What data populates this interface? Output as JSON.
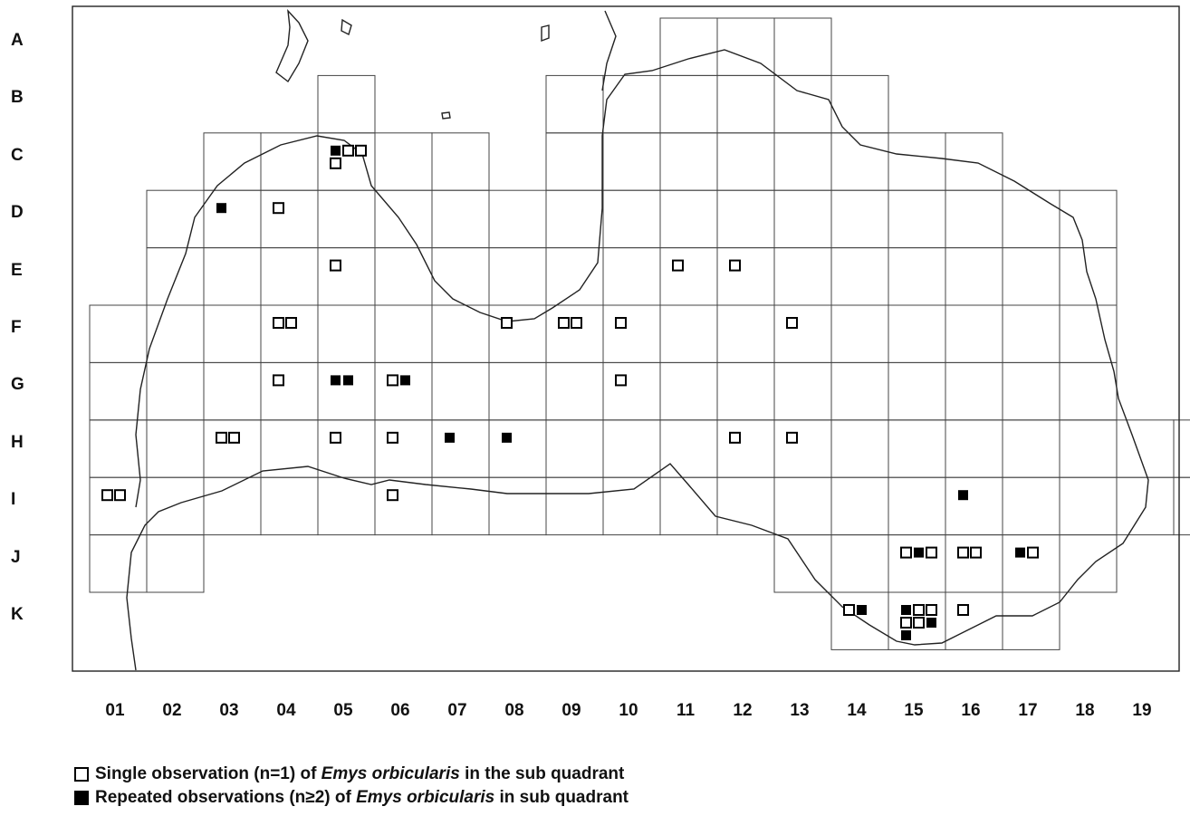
{
  "rows": [
    "A",
    "B",
    "C",
    "D",
    "E",
    "F",
    "G",
    "H",
    "I",
    "J",
    "K"
  ],
  "cols": [
    "01",
    "02",
    "03",
    "04",
    "05",
    "06",
    "07",
    "08",
    "09",
    "10",
    "11",
    "12",
    "13",
    "14",
    "15",
    "16",
    "17",
    "18",
    "19"
  ],
  "legend": {
    "single": {
      "prefix": "Single observation (n=1) of ",
      "species": "Emys orbicularis",
      "suffix": " in the sub quadrant"
    },
    "repeated": {
      "prefix": "Repeated observations (n≥2) of ",
      "species": "Emys orbicularis",
      "suffix": " in sub quadrant"
    }
  },
  "observations": [
    {
      "kind": "repeated",
      "col": "05",
      "row": "C"
    },
    {
      "kind": "single",
      "col": "05",
      "row": "C"
    },
    {
      "kind": "single",
      "col": "05",
      "row": "C"
    },
    {
      "kind": "single",
      "col": "05",
      "row": "C"
    },
    {
      "kind": "repeated",
      "col": "03",
      "row": "D"
    },
    {
      "kind": "single",
      "col": "04",
      "row": "D"
    },
    {
      "kind": "single",
      "col": "05",
      "row": "E"
    },
    {
      "kind": "single",
      "col": "12",
      "row": "E"
    },
    {
      "kind": "single",
      "col": "11",
      "row": "E"
    },
    {
      "kind": "single",
      "col": "04",
      "row": "F"
    },
    {
      "kind": "single",
      "col": "04",
      "row": "F"
    },
    {
      "kind": "single",
      "col": "08",
      "row": "F"
    },
    {
      "kind": "single",
      "col": "09",
      "row": "F"
    },
    {
      "kind": "single",
      "col": "09",
      "row": "F"
    },
    {
      "kind": "single",
      "col": "13",
      "row": "F"
    },
    {
      "kind": "single",
      "col": "10",
      "row": "F"
    },
    {
      "kind": "single",
      "col": "04",
      "row": "G"
    },
    {
      "kind": "repeated",
      "col": "05",
      "row": "G"
    },
    {
      "kind": "repeated",
      "col": "05",
      "row": "G"
    },
    {
      "kind": "single",
      "col": "10",
      "row": "G"
    },
    {
      "kind": "single",
      "col": "06",
      "row": "G"
    },
    {
      "kind": "repeated",
      "col": "06",
      "row": "G"
    },
    {
      "kind": "single",
      "col": "06",
      "row": "H"
    },
    {
      "kind": "single",
      "col": "03",
      "row": "H"
    },
    {
      "kind": "single",
      "col": "03",
      "row": "H"
    },
    {
      "kind": "repeated",
      "col": "07",
      "row": "H"
    },
    {
      "kind": "repeated",
      "col": "08",
      "row": "H"
    },
    {
      "kind": "single",
      "col": "12",
      "row": "H"
    },
    {
      "kind": "single",
      "col": "13",
      "row": "H"
    },
    {
      "kind": "single",
      "col": "05",
      "row": "H"
    },
    {
      "kind": "single",
      "col": "01",
      "row": "I"
    },
    {
      "kind": "single",
      "col": "01",
      "row": "I"
    },
    {
      "kind": "single",
      "col": "06",
      "row": "I"
    },
    {
      "kind": "repeated",
      "col": "16",
      "row": "I"
    },
    {
      "kind": "single",
      "col": "15",
      "row": "J"
    },
    {
      "kind": "repeated",
      "col": "15",
      "row": "J"
    },
    {
      "kind": "single",
      "col": "15",
      "row": "J"
    },
    {
      "kind": "repeated",
      "col": "17",
      "row": "J"
    },
    {
      "kind": "single",
      "col": "17",
      "row": "J"
    },
    {
      "kind": "single",
      "col": "16",
      "row": "J"
    },
    {
      "kind": "single",
      "col": "16",
      "row": "J"
    },
    {
      "kind": "single",
      "col": "16",
      "row": "K"
    },
    {
      "kind": "single",
      "col": "14",
      "row": "K"
    },
    {
      "kind": "repeated",
      "col": "14",
      "row": "K"
    },
    {
      "kind": "repeated",
      "col": "15",
      "row": "K"
    },
    {
      "kind": "single",
      "col": "15",
      "row": "K"
    },
    {
      "kind": "single",
      "col": "15",
      "row": "K"
    },
    {
      "kind": "single",
      "col": "15",
      "row": "K"
    },
    {
      "kind": "single",
      "col": "15",
      "row": "K"
    },
    {
      "kind": "repeated",
      "col": "15",
      "row": "K"
    },
    {
      "kind": "repeated",
      "col": "15",
      "row": "K"
    }
  ]
}
